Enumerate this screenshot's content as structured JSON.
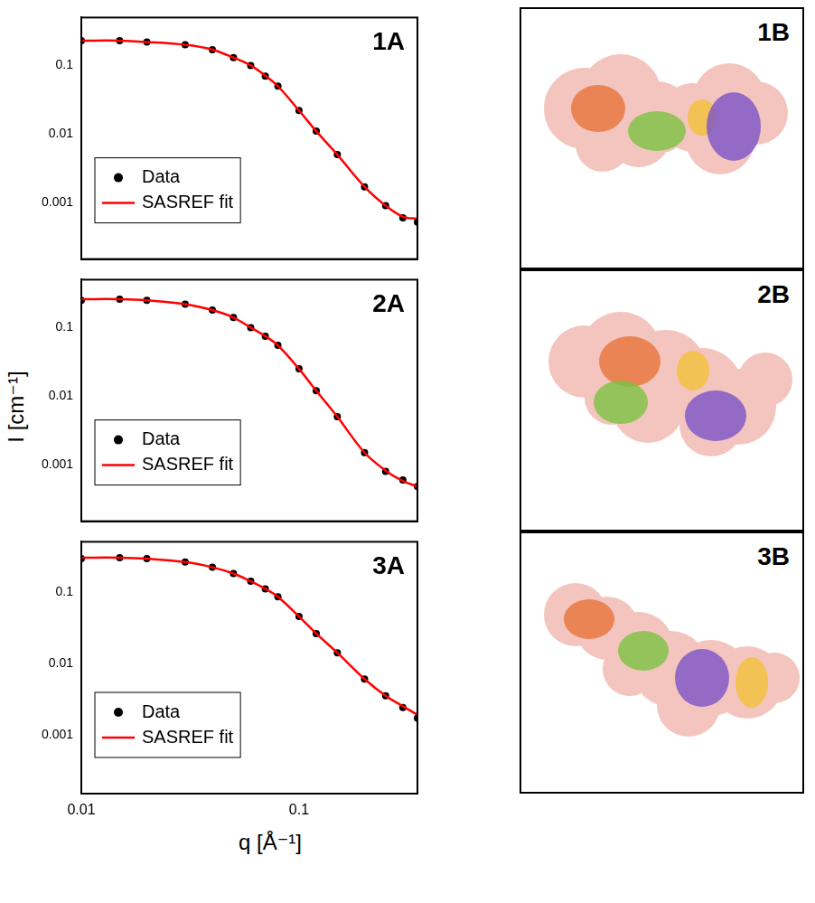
{
  "chart_data": [
    {
      "type": "line",
      "title": "1A",
      "log": true,
      "grid": false,
      "legend": "lower left",
      "tick_labels": "y",
      "xlim": [
        0.01,
        0.35
      ],
      "xticks": [
        0.01,
        0.1
      ],
      "ylim": [
        0.00015,
        0.5
      ],
      "yticks": [
        0.001,
        0.01,
        0.1
      ],
      "x": [
        0.01,
        0.015,
        0.02,
        0.03,
        0.04,
        0.05,
        0.06,
        0.07,
        0.08,
        0.1,
        0.12,
        0.15,
        0.2,
        0.25,
        0.3,
        0.35
      ],
      "series": [
        {
          "name": "Data",
          "type": "scatter",
          "color": "#000000",
          "marker": "circle",
          "values": [
            0.23,
            0.23,
            0.22,
            0.2,
            0.17,
            0.13,
            0.1,
            0.07,
            0.05,
            0.022,
            0.011,
            0.005,
            0.0017,
            0.0009,
            0.0006,
            0.00052
          ]
        },
        {
          "name": "SASREF fit",
          "type": "line",
          "color": "#ff0000",
          "line_style": "solid",
          "values": [
            0.23,
            0.23,
            0.22,
            0.2,
            0.17,
            0.13,
            0.1,
            0.071,
            0.05,
            0.022,
            0.011,
            0.005,
            0.0017,
            0.0009,
            0.00062,
            0.00058
          ]
        }
      ]
    },
    {
      "type": "line",
      "title": "2A",
      "log": true,
      "grid": false,
      "legend": "lower left",
      "tick_labels": "y",
      "xlim": [
        0.01,
        0.35
      ],
      "xticks": [
        0.01,
        0.1
      ],
      "ylim": [
        0.00015,
        0.5
      ],
      "yticks": [
        0.001,
        0.01,
        0.1
      ],
      "x": [
        0.01,
        0.015,
        0.02,
        0.03,
        0.04,
        0.05,
        0.06,
        0.07,
        0.08,
        0.1,
        0.12,
        0.15,
        0.2,
        0.25,
        0.3,
        0.35
      ],
      "series": [
        {
          "name": "Data",
          "type": "scatter",
          "color": "#000000",
          "marker": "circle",
          "values": [
            0.25,
            0.26,
            0.25,
            0.22,
            0.18,
            0.14,
            0.1,
            0.075,
            0.055,
            0.025,
            0.012,
            0.005,
            0.0015,
            0.0008,
            0.0006,
            0.00048
          ]
        },
        {
          "name": "SASREF fit",
          "type": "line",
          "color": "#ff0000",
          "line_style": "solid",
          "values": [
            0.26,
            0.26,
            0.25,
            0.22,
            0.18,
            0.14,
            0.1,
            0.075,
            0.055,
            0.025,
            0.012,
            0.005,
            0.0015,
            0.00082,
            0.00058,
            0.00048
          ]
        }
      ]
    },
    {
      "type": "line",
      "title": "3A",
      "log": true,
      "grid": false,
      "legend": "lower left",
      "xlim": [
        0.01,
        0.35
      ],
      "xticks": [
        0.01,
        0.1
      ],
      "ylim": [
        0.00015,
        0.5
      ],
      "yticks": [
        0.001,
        0.01,
        0.1
      ],
      "x": [
        0.01,
        0.015,
        0.02,
        0.03,
        0.04,
        0.05,
        0.06,
        0.07,
        0.08,
        0.1,
        0.12,
        0.15,
        0.2,
        0.25,
        0.3,
        0.35
      ],
      "series": [
        {
          "name": "Data",
          "type": "scatter",
          "color": "#000000",
          "marker": "circle",
          "values": [
            0.29,
            0.3,
            0.29,
            0.26,
            0.22,
            0.18,
            0.14,
            0.11,
            0.085,
            0.045,
            0.026,
            0.014,
            0.006,
            0.0035,
            0.0024,
            0.0017
          ]
        },
        {
          "name": "SASREF fit",
          "type": "line",
          "color": "#ff0000",
          "line_style": "solid",
          "values": [
            0.3,
            0.3,
            0.29,
            0.26,
            0.22,
            0.18,
            0.14,
            0.11,
            0.085,
            0.045,
            0.026,
            0.014,
            0.006,
            0.0035,
            0.0025,
            0.0019
          ]
        }
      ]
    }
  ],
  "axes": {
    "x_label": "q [Å⁻¹]",
    "y_label": "I [cm⁻¹]"
  },
  "panels": [
    {
      "label": "1B"
    },
    {
      "label": "2B"
    },
    {
      "label": "3B"
    }
  ]
}
